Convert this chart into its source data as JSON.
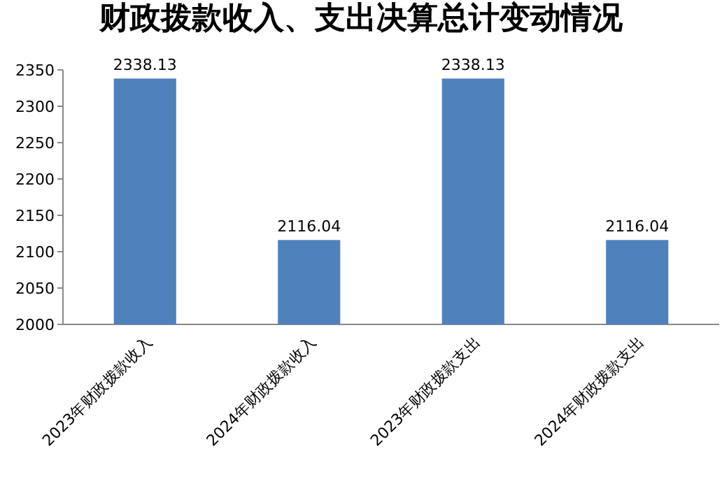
{
  "chart_data": {
    "type": "bar",
    "title": "财政拨款收入、支出决算总计变动情况",
    "categories": [
      "2023年财政拨款收入",
      "2024年财政拨款收入",
      "2023年财政拨款支出",
      "2024年财政拨款支出"
    ],
    "values": [
      2338.13,
      2116.04,
      2338.13,
      2116.04
    ],
    "color": "#4f81bd",
    "ylim": [
      2000,
      2350
    ],
    "yticks": [
      2000,
      2050,
      2100,
      2150,
      2200,
      2250,
      2300,
      2350
    ],
    "grid": false,
    "data_labels": true
  }
}
